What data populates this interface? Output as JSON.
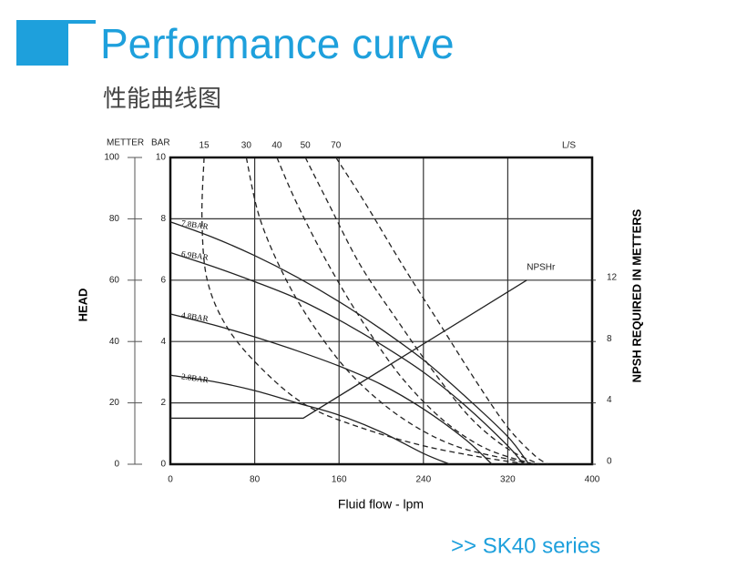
{
  "header": {
    "title": "Performance curve",
    "subtitle": "性能曲线图"
  },
  "chart_data": {
    "type": "line",
    "xlabel": "Fluid flow - lpm",
    "xlim": [
      0,
      400
    ],
    "xticks": [
      0,
      80,
      160,
      240,
      320,
      400
    ],
    "ylabel": "BAR",
    "ylim": [
      0,
      10
    ],
    "yticks": [
      0,
      2,
      4,
      6,
      8,
      10
    ],
    "meter_axis": {
      "label": "METTER",
      "title": "HEAD",
      "lim": [
        0,
        100
      ],
      "ticks": [
        0,
        20,
        40,
        60,
        80,
        100
      ]
    },
    "y2label": "NPSH REQUIRED IN METTERS",
    "y2lim": [
      0,
      20
    ],
    "y2ticks": [
      0,
      4,
      8,
      12
    ],
    "top_unit": "L/S",
    "grid": true,
    "series": [
      {
        "name": "7.8BAR",
        "style": "solid",
        "color": "#222222",
        "x": [
          0,
          40,
          80,
          120,
          160,
          200,
          240,
          280,
          320,
          340
        ],
        "values": [
          7.9,
          7.4,
          6.8,
          6.1,
          5.3,
          4.4,
          3.4,
          2.2,
          0.9,
          0
        ]
      },
      {
        "name": "6.9BAR",
        "style": "solid",
        "color": "#222222",
        "x": [
          0,
          40,
          80,
          120,
          160,
          200,
          240,
          280,
          320,
          335
        ],
        "values": [
          6.9,
          6.45,
          5.95,
          5.4,
          4.7,
          3.9,
          3.0,
          1.9,
          0.6,
          0
        ]
      },
      {
        "name": "4.8BAR",
        "style": "solid",
        "color": "#222222",
        "x": [
          0,
          40,
          80,
          120,
          160,
          200,
          240,
          280,
          305
        ],
        "values": [
          4.9,
          4.55,
          4.15,
          3.7,
          3.2,
          2.6,
          1.8,
          0.8,
          0
        ]
      },
      {
        "name": "2.8BAR",
        "style": "solid",
        "color": "#222222",
        "x": [
          0,
          40,
          80,
          120,
          160,
          200,
          240,
          265
        ],
        "values": [
          2.9,
          2.7,
          2.4,
          2.0,
          1.6,
          1.05,
          0.35,
          0
        ]
      },
      {
        "name": "15",
        "style": "dashed",
        "color": "#222222",
        "x": [
          32,
          30,
          35,
          55,
          90,
          130,
          180,
          240,
          300,
          340
        ],
        "values": [
          10,
          8,
          6,
          4.4,
          3.0,
          1.9,
          1.2,
          0.6,
          0.2,
          0
        ]
      },
      {
        "name": "30",
        "style": "dashed",
        "color": "#222222",
        "x": [
          72,
          85,
          110,
          140,
          175,
          220,
          270,
          330,
          350
        ],
        "values": [
          10,
          8,
          6,
          4.3,
          2.8,
          1.5,
          0.6,
          0.1,
          0
        ]
      },
      {
        "name": "40",
        "style": "dashed",
        "color": "#222222",
        "x": [
          101,
          120,
          150,
          185,
          220,
          260,
          300,
          345
        ],
        "values": [
          10,
          8.5,
          6.5,
          4.5,
          2.8,
          1.4,
          0.5,
          0
        ]
      },
      {
        "name": "50",
        "style": "dashed",
        "color": "#222222",
        "x": [
          128,
          150,
          180,
          215,
          250,
          285,
          320,
          350
        ],
        "values": [
          10,
          8.5,
          6.5,
          4.7,
          3.0,
          1.5,
          0.5,
          0
        ]
      },
      {
        "name": "70",
        "style": "dashed",
        "color": "#222222",
        "x": [
          157,
          185,
          220,
          255,
          290,
          320,
          345,
          358
        ],
        "values": [
          10,
          8.5,
          6.5,
          4.6,
          2.7,
          1.2,
          0.3,
          0
        ]
      },
      {
        "name": "NPSHr",
        "style": "npsh",
        "axis": "y2",
        "color": "#222222",
        "x": [
          0,
          126,
          338
        ],
        "values": [
          3,
          3,
          12
        ]
      }
    ]
  },
  "footer": {
    "series": ">>  SK40 series"
  }
}
